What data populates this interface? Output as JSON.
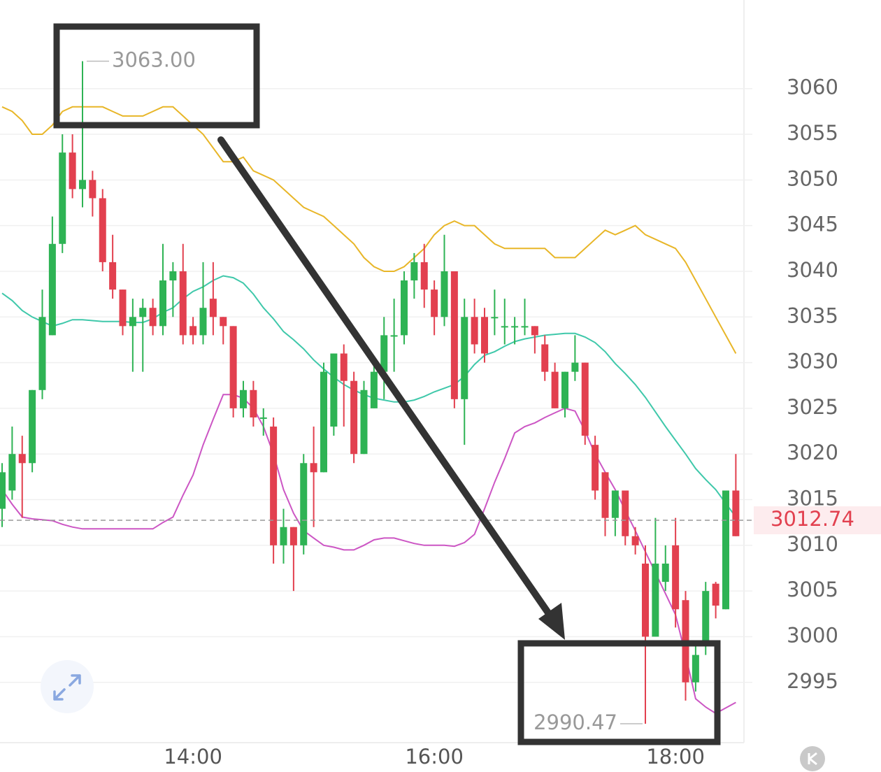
{
  "chart_data": {
    "type": "candlestick",
    "categories": [
      null,
      null,
      null,
      null,
      null,
      null,
      null,
      null,
      null,
      null,
      null,
      null,
      null,
      null,
      null,
      null,
      null,
      null,
      null,
      "14:00",
      null,
      null,
      null,
      null,
      null,
      null,
      null,
      null,
      null,
      null,
      null,
      null,
      null,
      null,
      null,
      null,
      null,
      null,
      null,
      null,
      null,
      null,
      null,
      "16:00",
      null,
      null,
      null,
      null,
      null,
      null,
      null,
      null,
      null,
      null,
      null,
      null,
      null,
      null,
      null,
      null,
      null,
      null,
      null,
      null,
      null,
      null,
      null,
      "18:00",
      null,
      null,
      null,
      null,
      null,
      null
    ],
    "open": [
      3014,
      3016,
      3020,
      3019,
      3027,
      3033,
      3043,
      3053,
      3049,
      3050,
      3048,
      3041,
      3038,
      3034,
      3035,
      3036,
      3034,
      3039,
      3040,
      3034,
      3033,
      3037,
      3035,
      3034,
      3025,
      3027,
      3024,
      3023,
      3010,
      3012,
      3010,
      3019,
      3018,
      3023,
      3031,
      3028,
      3020,
      3025,
      3029,
      3033,
      3033,
      3039,
      3041,
      3038,
      3035,
      3040,
      3026,
      3035,
      3035,
      3035,
      3034,
      3034,
      3034,
      3034,
      3032,
      3029,
      3025,
      3029,
      3030,
      3021,
      3018,
      3013,
      3016,
      3011,
      3008,
      3000,
      3006,
      3010,
      3004,
      2995,
      2999,
      3005.8,
      3003,
      3016
    ],
    "high": [
      3019,
      3023,
      3022,
      3027,
      3038,
      3046,
      3055,
      3055,
      3063,
      3051,
      3049,
      3044,
      3038,
      3037,
      3037,
      3037,
      3043,
      3041,
      3043,
      3035,
      3041,
      3041,
      3035,
      3034,
      3028,
      3028,
      3025,
      3024,
      3014,
      3012,
      3020,
      3023,
      3030,
      3031,
      3032,
      3029,
      3028,
      3030,
      3035,
      3037,
      3040,
      3042,
      3043,
      3039,
      3044,
      3040,
      3037,
      3037,
      3036,
      3038,
      3037,
      3035,
      3037,
      3034,
      3033,
      3030,
      3029,
      3033,
      3030,
      3022,
      3018,
      3016,
      3016,
      3012,
      3010,
      3013,
      3010,
      3013,
      3005,
      2999,
      3006,
      3006,
      3016,
      3020
    ],
    "low": [
      3012,
      3015,
      3013,
      3018,
      3026,
      3033,
      3042,
      3048,
      3047,
      3046,
      3040,
      3037,
      3033,
      3029,
      3029,
      3033,
      3033,
      3035,
      3032,
      3032,
      3032,
      3033,
      3032,
      3024,
      3024,
      3023,
      3022,
      3008,
      3008,
      3005,
      3009,
      3012,
      3018,
      3022,
      3023,
      3019,
      3020,
      3025,
      3026,
      3029,
      3032,
      3037,
      3036,
      3033,
      3034,
      3025,
      3021,
      3031,
      3030,
      3033,
      3032,
      3032,
      3033,
      3031,
      3028,
      3025,
      3024,
      3028,
      3021,
      3015,
      3011,
      3011,
      3010,
      3009,
      2990.47,
      3000,
      3005,
      3001,
      2993,
      2994,
      2998,
      3002,
      3003,
      3011
    ],
    "close": [
      3018,
      3020,
      3019,
      3027,
      3035,
      3043,
      3053,
      3049,
      3050,
      3048,
      3041,
      3038,
      3034,
      3035,
      3036,
      3034,
      3039,
      3040,
      3033,
      3033,
      3036,
      3035,
      3034,
      3025,
      3027,
      3024,
      3024,
      3010,
      3012,
      3010,
      3019,
      3018,
      3029,
      3031,
      3028,
      3020,
      3027,
      3029,
      3033,
      3033,
      3039,
      3041,
      3038,
      3035,
      3040,
      3026,
      3035,
      3032,
      3031,
      3035,
      3034,
      3034,
      3034,
      3033,
      3029,
      3025,
      3029,
      3030,
      3022,
      3016,
      3013,
      3016,
      3011,
      3010,
      3000,
      3008,
      3008,
      3003,
      2995,
      2998,
      3005,
      3003.4,
      3016,
      3011
    ],
    "up_color": "#2eb354",
    "down_color": "#e2404f",
    "bands": [
      {
        "color": "#e8b628",
        "values": [
          3058,
          3057.5,
          3056.5,
          3055,
          3055,
          3056,
          3057.5,
          3058,
          3058,
          3058,
          3058,
          3057.5,
          3057,
          3057,
          3057,
          3057.5,
          3058,
          3058,
          3057,
          3056,
          3055,
          3053.5,
          3052,
          3052,
          3052.5,
          3051,
          3050.5,
          3050,
          3049,
          3048,
          3047,
          3046.5,
          3046,
          3045,
          3044,
          3043,
          3041.5,
          3040.5,
          3040,
          3040,
          3040.5,
          3041.5,
          3042.5,
          3044,
          3045,
          3045.5,
          3045,
          3045,
          3044,
          3043,
          3042.5,
          3042.5,
          3042.5,
          3042.5,
          3042.5,
          3041.5,
          3041.5,
          3041.5,
          3042.5,
          3043.5,
          3044.5,
          3044,
          3044.5,
          3045,
          3044,
          3043.5,
          3043,
          3042.5,
          3041,
          3039,
          3037,
          3035,
          3033,
          3031
        ]
      },
      {
        "color": "#3fc8aa",
        "values": [
          3037.6,
          3036.8,
          3035.7,
          3035,
          3034.5,
          3034,
          3034.3,
          3034.7,
          3034.7,
          3034.6,
          3034.5,
          3034.5,
          3034.5,
          3034.4,
          3034.4,
          3034.8,
          3035.5,
          3036,
          3037,
          3037.8,
          3038.3,
          3039,
          3039.5,
          3039.3,
          3038.7,
          3037.5,
          3036,
          3034.8,
          3033.4,
          3032.5,
          3031.5,
          3030.3,
          3029.3,
          3028.4,
          3027.6,
          3027,
          3026.5,
          3026.1,
          3025.9,
          3025.7,
          3025.7,
          3025.9,
          3026.3,
          3026.8,
          3027.2,
          3027.6,
          3028.5,
          3029.8,
          3030.8,
          3031.2,
          3031.8,
          3032.3,
          3032.6,
          3032.8,
          3033,
          3033.1,
          3033.2,
          3033.2,
          3032.8,
          3032.2,
          3031.2,
          3029.9,
          3028.8,
          3027.6,
          3026.2,
          3024.6,
          3023,
          3021.5,
          3020,
          3018.4,
          3017.2,
          3016.1,
          3014.6,
          3013.1
        ]
      },
      {
        "color": "#cc56c4",
        "values": [
          3016.1,
          3014.5,
          3013.1,
          3012.9,
          3012.8,
          3012.7,
          3012.3,
          3012,
          3011.8,
          3011.8,
          3011.8,
          3011.8,
          3011.8,
          3011.8,
          3011.8,
          3011.8,
          3012.5,
          3013.1,
          3015.5,
          3017.7,
          3021,
          3023.8,
          3026.5,
          3026.5,
          3026.1,
          3025,
          3023,
          3020,
          3016.1,
          3013.5,
          3011.6,
          3010.8,
          3010,
          3009.8,
          3009.5,
          3009.5,
          3010,
          3010.6,
          3010.8,
          3010.8,
          3010.5,
          3010.2,
          3010,
          3010,
          3010,
          3009.9,
          3010.3,
          3011.2,
          3014,
          3016.9,
          3019.5,
          3022.3,
          3023,
          3023.4,
          3024,
          3024.5,
          3025,
          3024.7,
          3022.5,
          3020,
          3018,
          3016.1,
          3013.8,
          3011.6,
          3009.3,
          3007,
          3004.7,
          3002.4,
          2998,
          2993.2,
          2992.3,
          2991.6,
          2992.2,
          2992.8
        ]
      }
    ],
    "ylim": [
      2988.4,
      3069.7
    ],
    "yticks": [
      2995,
      3000,
      3005,
      3010,
      3015,
      3020,
      3025,
      3030,
      3035,
      3040,
      3045,
      3050,
      3055,
      3060
    ],
    "grid": true,
    "max_label": {
      "value": 3063,
      "label": "3063.00"
    },
    "min_label": {
      "value": 2990.47,
      "label": "2990.47"
    },
    "current_price": {
      "value": 3012.74,
      "label": "3012.74"
    }
  }
}
